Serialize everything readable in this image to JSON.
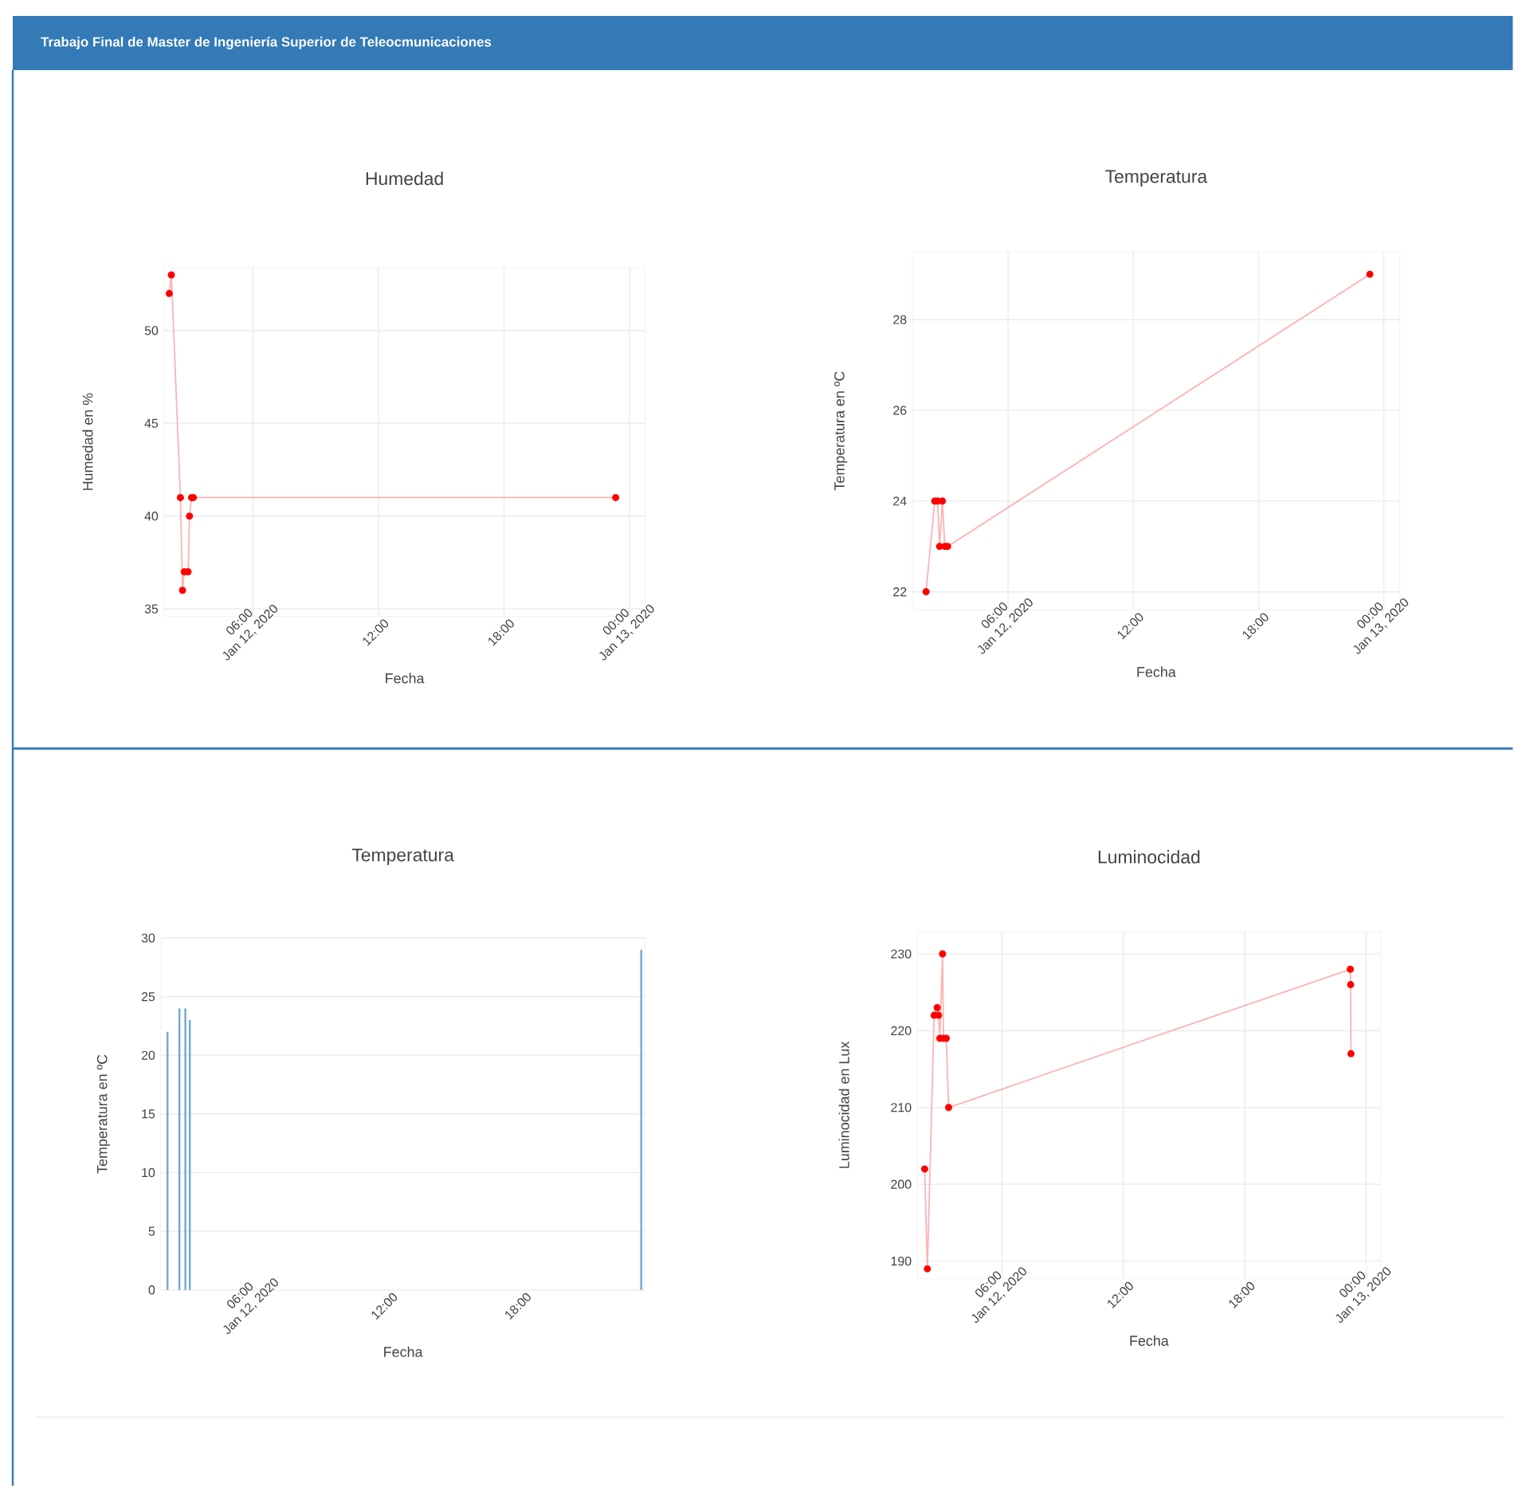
{
  "chart_data": [
    {
      "type": "line",
      "title": "Humedad",
      "xlabel": "Fecha",
      "ylabel": "Humedad en %",
      "annotations": [
        "Trabajo Final de Master de Ingeniería Superior de Teleocmunicaciones"
      ],
      "x": [
        "2020-01-12T02:00",
        "2020-01-12T02:06",
        "2020-01-12T02:32",
        "2020-01-12T02:38",
        "2020-01-12T02:43",
        "2020-01-12T02:54",
        "2020-01-12T02:58",
        "2020-01-12T03:04",
        "2020-01-12T03:09",
        "2020-01-12T23:20"
      ],
      "values": [
        52,
        53,
        41,
        36,
        37,
        37,
        40,
        41,
        41,
        41
      ],
      "color": "#ff0000",
      "marker": "circle",
      "grid": true,
      "xlim": [
        "2020-01-12T01:45",
        "2020-01-13T00:44"
      ],
      "ylim": [
        34.6,
        53.4
      ],
      "xticks": [
        {
          "value": "2020-01-12T06:00",
          "label": "06:00\nJan 12, 2020"
        },
        {
          "value": "2020-01-12T12:00",
          "label": "12:00"
        },
        {
          "value": "2020-01-12T18:00",
          "label": "18:00"
        },
        {
          "value": "2020-01-13T00:00",
          "label": "00:00\nJan 13, 2020"
        }
      ],
      "yticks": [
        35,
        40,
        45,
        50
      ]
    },
    {
      "type": "line",
      "title": "Temperatura",
      "xlabel": "Fecha",
      "ylabel": "Temperatura en ºC",
      "x": [
        "2020-01-12T02:04",
        "2020-01-12T02:29",
        "2020-01-12T02:37",
        "2020-01-12T02:43",
        "2020-01-12T02:51",
        "2020-01-12T02:58",
        "2020-01-12T03:06",
        "2020-01-12T23:20"
      ],
      "values": [
        22,
        24,
        24,
        23,
        24,
        23,
        23,
        29
      ],
      "color": "#ff0000",
      "marker": "circle",
      "grid": true,
      "xlim": [
        "2020-01-12T01:25",
        "2020-01-13T00:46"
      ],
      "ylim": [
        21.6,
        29.5
      ],
      "xticks": [
        {
          "value": "2020-01-12T06:00",
          "label": "06:00\nJan 12, 2020"
        },
        {
          "value": "2020-01-12T12:00",
          "label": "12:00"
        },
        {
          "value": "2020-01-12T18:00",
          "label": "18:00"
        },
        {
          "value": "2020-01-13T00:00",
          "label": "00:00\nJan 13, 2020"
        }
      ],
      "yticks": [
        22,
        24,
        26,
        28
      ]
    },
    {
      "type": "bar",
      "title": "Temperatura",
      "xlabel": "Fecha",
      "ylabel": "Temperatura en ºC",
      "x": [
        "2020-01-12T02:08",
        "2020-01-12T02:40",
        "2020-01-12T02:56",
        "2020-01-12T03:08",
        "2020-01-12T23:24"
      ],
      "values": [
        22,
        24,
        24,
        23,
        29
      ],
      "color": "#6fa8d6",
      "grid": "y",
      "xlim": [
        "2020-01-12T01:50",
        "2020-01-12T23:34"
      ],
      "ylim": [
        0,
        30
      ],
      "xticks": [
        {
          "value": "2020-01-12T06:00",
          "label": "06:00\nJan 12, 2020"
        },
        {
          "value": "2020-01-12T12:00",
          "label": "12:00"
        },
        {
          "value": "2020-01-12T18:00",
          "label": "18:00"
        }
      ],
      "yticks": [
        0,
        5,
        10,
        15,
        20,
        25,
        30
      ]
    },
    {
      "type": "line",
      "title": "Luminocidad",
      "xlabel": "Fecha",
      "ylabel": "Luminocidad en Lux",
      "x": [
        "2020-01-12T02:11",
        "2020-01-12T02:19",
        "2020-01-12T02:39",
        "2020-01-12T02:48",
        "2020-01-12T02:52",
        "2020-01-12T02:56",
        "2020-01-12T03:04",
        "2020-01-12T03:07",
        "2020-01-12T03:15",
        "2020-01-12T03:22",
        "2020-01-12T23:13",
        "2020-01-12T23:14",
        "2020-01-12T23:15"
      ],
      "values": [
        202,
        189,
        222,
        223,
        222,
        219,
        230,
        219,
        219,
        210,
        228,
        226,
        217
      ],
      "color": "#ff0000",
      "marker": "circle",
      "grid": true,
      "xlim": [
        "2020-01-12T01:49",
        "2020-01-13T00:43"
      ],
      "ylim": [
        187.7,
        232.9
      ],
      "xticks": [
        {
          "value": "2020-01-12T06:00",
          "label": "06:00\nJan 12, 2020"
        },
        {
          "value": "2020-01-12T12:00",
          "label": "12:00"
        },
        {
          "value": "2020-01-12T18:00",
          "label": "18:00"
        },
        {
          "value": "2020-01-13T00:00",
          "label": "00:00\nJan 13, 2020"
        }
      ],
      "yticks": [
        190,
        200,
        210,
        220,
        230
      ]
    }
  ]
}
